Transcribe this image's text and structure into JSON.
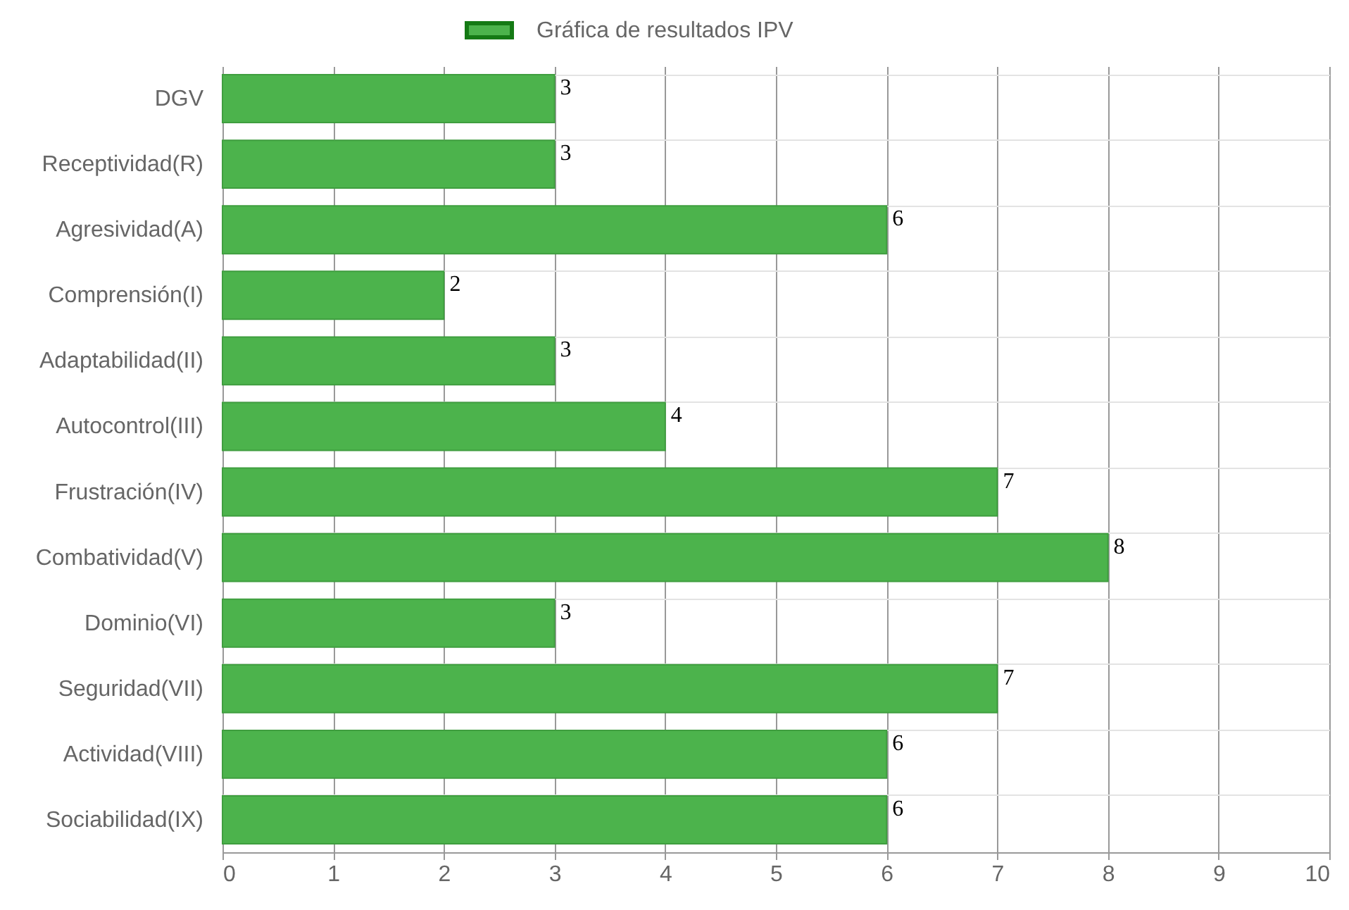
{
  "chart_data": {
    "type": "bar",
    "orientation": "horizontal",
    "categories": [
      "DGV",
      "Receptividad(R)",
      "Agresividad(A)",
      "Comprensión(I)",
      "Adaptabilidad(II)",
      "Autocontrol(III)",
      "Frustración(IV)",
      "Combatividad(V)",
      "Dominio(VI)",
      "Seguridad(VII)",
      "Actividad(VIII)",
      "Sociabilidad(IX)"
    ],
    "series": [
      {
        "name": "Gráfica de resultados IPV",
        "color": "#4cb34c",
        "values": [
          3,
          3,
          6,
          2,
          3,
          4,
          7,
          8,
          3,
          7,
          6,
          6
        ]
      }
    ],
    "xlim": [
      0,
      10
    ],
    "xticks": [
      0,
      1,
      2,
      3,
      4,
      5,
      6,
      7,
      8,
      9,
      10
    ],
    "grid": true,
    "legend": "top",
    "data_labels": true
  }
}
